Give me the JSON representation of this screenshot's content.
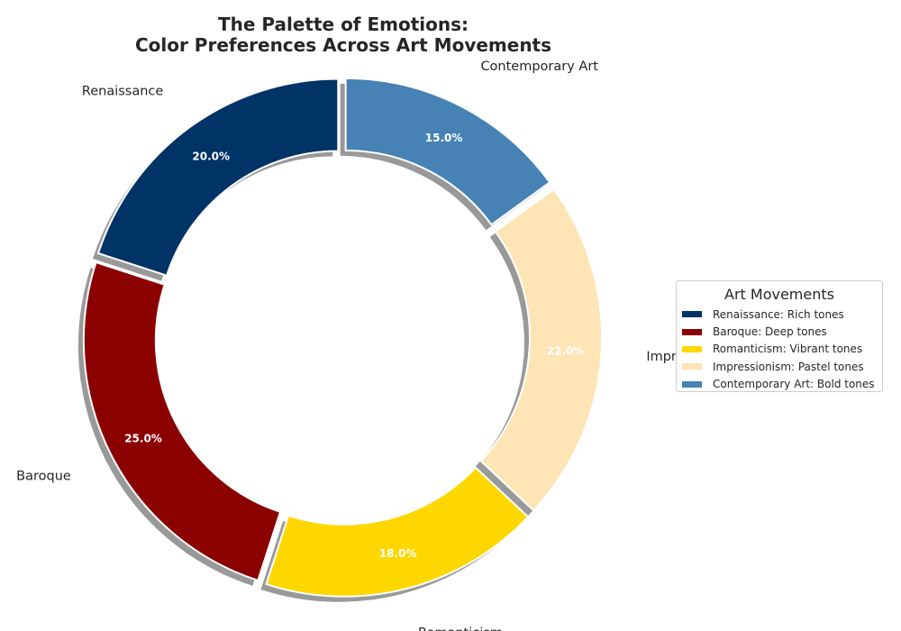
{
  "chart_data": {
    "type": "pie",
    "style": "donut",
    "title": "The Palette of Emotions:\nColor Preferences Across Art Movements",
    "categories": [
      "Renaissance",
      "Baroque",
      "Romanticism",
      "Impressionism",
      "Contemporary Art"
    ],
    "values": [
      20.0,
      25.0,
      18.0,
      22.0,
      15.0
    ],
    "value_labels": [
      "20.0%",
      "25.0%",
      "18.0%",
      "22.0%",
      "15.0%"
    ],
    "colors": [
      "#003366",
      "#8B0000",
      "#FFD700",
      "#FFE4B5",
      "#4682B4"
    ],
    "start_angle_deg": 90,
    "exploded": true,
    "shadow": true,
    "legend": {
      "title": "Art Movements",
      "placement": "center-right",
      "entries": [
        "Renaissance: Rich tones",
        "Baroque: Deep tones",
        "Romanticism: Vibrant tones",
        "Impressionism: Pastel tones",
        "Contemporary Art: Bold tones"
      ]
    }
  }
}
